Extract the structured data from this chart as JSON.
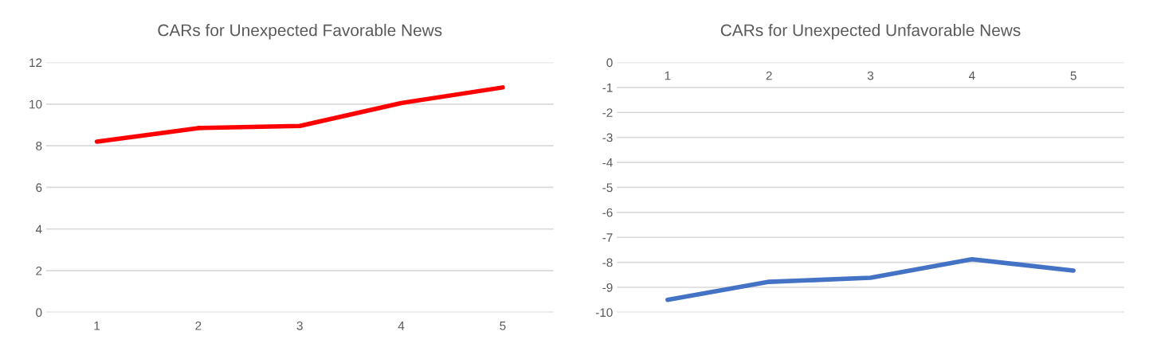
{
  "chart_data": [
    {
      "type": "line",
      "title": "CARs for Unexpected Favorable News",
      "categories": [
        "1",
        "2",
        "3",
        "4",
        "5"
      ],
      "series": [
        {
          "color": "#ff0000",
          "values": [
            8.2,
            8.85,
            8.95,
            10.05,
            10.8
          ]
        }
      ],
      "ylim": [
        0,
        12
      ],
      "yticks": [
        0,
        2,
        4,
        6,
        8,
        10,
        12
      ],
      "grid": "y",
      "legend": false,
      "marker": "none",
      "line_style": "solid"
    },
    {
      "type": "line",
      "title": "CARs for Unexpected Unfavorable News",
      "categories": [
        "1",
        "2",
        "3",
        "4",
        "5"
      ],
      "series": [
        {
          "color": "#4472c4",
          "values": [
            -9.5,
            -8.78,
            -8.62,
            -7.88,
            -8.33
          ]
        }
      ],
      "ylim": [
        -10,
        0
      ],
      "yticks": [
        -10,
        -9,
        -8,
        -7,
        -6,
        -5,
        -4,
        -3,
        -2,
        -1,
        0
      ],
      "grid": "y",
      "legend": false,
      "marker": "none",
      "line_style": "solid"
    }
  ]
}
